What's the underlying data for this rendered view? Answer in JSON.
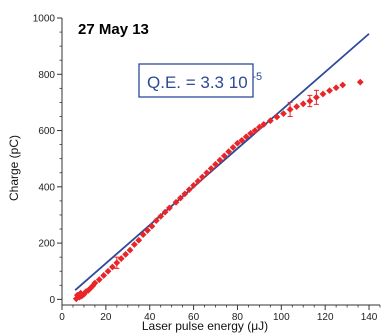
{
  "chart_data": {
    "type": "scatter",
    "date_label": "27 May 13",
    "annotation": {
      "prefix": "Q.E. = 3.3 10",
      "exponent": "-5"
    },
    "xlabel": "Laser pulse energy (μJ)",
    "ylabel": "Charge (pC)",
    "xlim": [
      0,
      145
    ],
    "ylim": [
      -20,
      1000
    ],
    "xticks": [
      0,
      20,
      40,
      60,
      80,
      100,
      120,
      140
    ],
    "yticks": [
      0,
      200,
      400,
      600,
      800,
      1000
    ],
    "grid": false,
    "colors": {
      "fit_line": "#2d4a9a",
      "points": "#e8262a",
      "axes": "#333333",
      "annotation_box": "#2d4a9a"
    },
    "fit_line": {
      "slope": 6.8,
      "intercept": -8,
      "x_range": [
        6,
        140
      ]
    },
    "series": [
      {
        "points": [
          {
            "x": 6.5,
            "y": 2
          },
          {
            "x": 7,
            "y": 15
          },
          {
            "x": 8,
            "y": 8
          },
          {
            "x": 8.5,
            "y": 22
          },
          {
            "x": 9,
            "y": 12
          },
          {
            "x": 10,
            "y": 18
          },
          {
            "x": 11,
            "y": 28
          },
          {
            "x": 12,
            "y": 32
          },
          {
            "x": 13,
            "y": 40
          },
          {
            "x": 14,
            "y": 48
          },
          {
            "x": 15,
            "y": 58
          },
          {
            "x": 17,
            "y": 70
          },
          {
            "x": 19,
            "y": 85
          },
          {
            "x": 21,
            "y": 100
          },
          {
            "x": 23,
            "y": 115
          },
          {
            "x": 25,
            "y": 130,
            "err": 20
          },
          {
            "x": 27,
            "y": 145
          },
          {
            "x": 29,
            "y": 160
          },
          {
            "x": 31,
            "y": 175
          },
          {
            "x": 33,
            "y": 195
          },
          {
            "x": 35,
            "y": 210
          },
          {
            "x": 37,
            "y": 230
          },
          {
            "x": 39,
            "y": 245
          },
          {
            "x": 41,
            "y": 260
          },
          {
            "x": 43,
            "y": 280
          },
          {
            "x": 45,
            "y": 295
          },
          {
            "x": 47,
            "y": 310
          },
          {
            "x": 49,
            "y": 325
          },
          {
            "x": 52,
            "y": 345
          },
          {
            "x": 54,
            "y": 360
          },
          {
            "x": 56,
            "y": 375
          },
          {
            "x": 58,
            "y": 390
          },
          {
            "x": 60,
            "y": 405
          },
          {
            "x": 62,
            "y": 420
          },
          {
            "x": 64,
            "y": 435
          },
          {
            "x": 66,
            "y": 450
          },
          {
            "x": 68,
            "y": 465
          },
          {
            "x": 70,
            "y": 480
          },
          {
            "x": 72,
            "y": 495
          },
          {
            "x": 74,
            "y": 510
          },
          {
            "x": 76,
            "y": 525
          },
          {
            "x": 78,
            "y": 540
          },
          {
            "x": 80,
            "y": 555
          },
          {
            "x": 82,
            "y": 565
          },
          {
            "x": 84,
            "y": 578
          },
          {
            "x": 86,
            "y": 590
          },
          {
            "x": 88,
            "y": 600
          },
          {
            "x": 90,
            "y": 612
          },
          {
            "x": 92,
            "y": 622
          },
          {
            "x": 95,
            "y": 635
          },
          {
            "x": 98,
            "y": 648
          },
          {
            "x": 101,
            "y": 660
          },
          {
            "x": 104,
            "y": 675,
            "err": 25
          },
          {
            "x": 107,
            "y": 685
          },
          {
            "x": 110,
            "y": 695
          },
          {
            "x": 113,
            "y": 705,
            "err": 20
          },
          {
            "x": 116,
            "y": 718,
            "err": 25
          },
          {
            "x": 119,
            "y": 730
          },
          {
            "x": 122,
            "y": 742
          },
          {
            "x": 125,
            "y": 752
          },
          {
            "x": 128,
            "y": 762
          },
          {
            "x": 136,
            "y": 772
          }
        ]
      }
    ]
  }
}
